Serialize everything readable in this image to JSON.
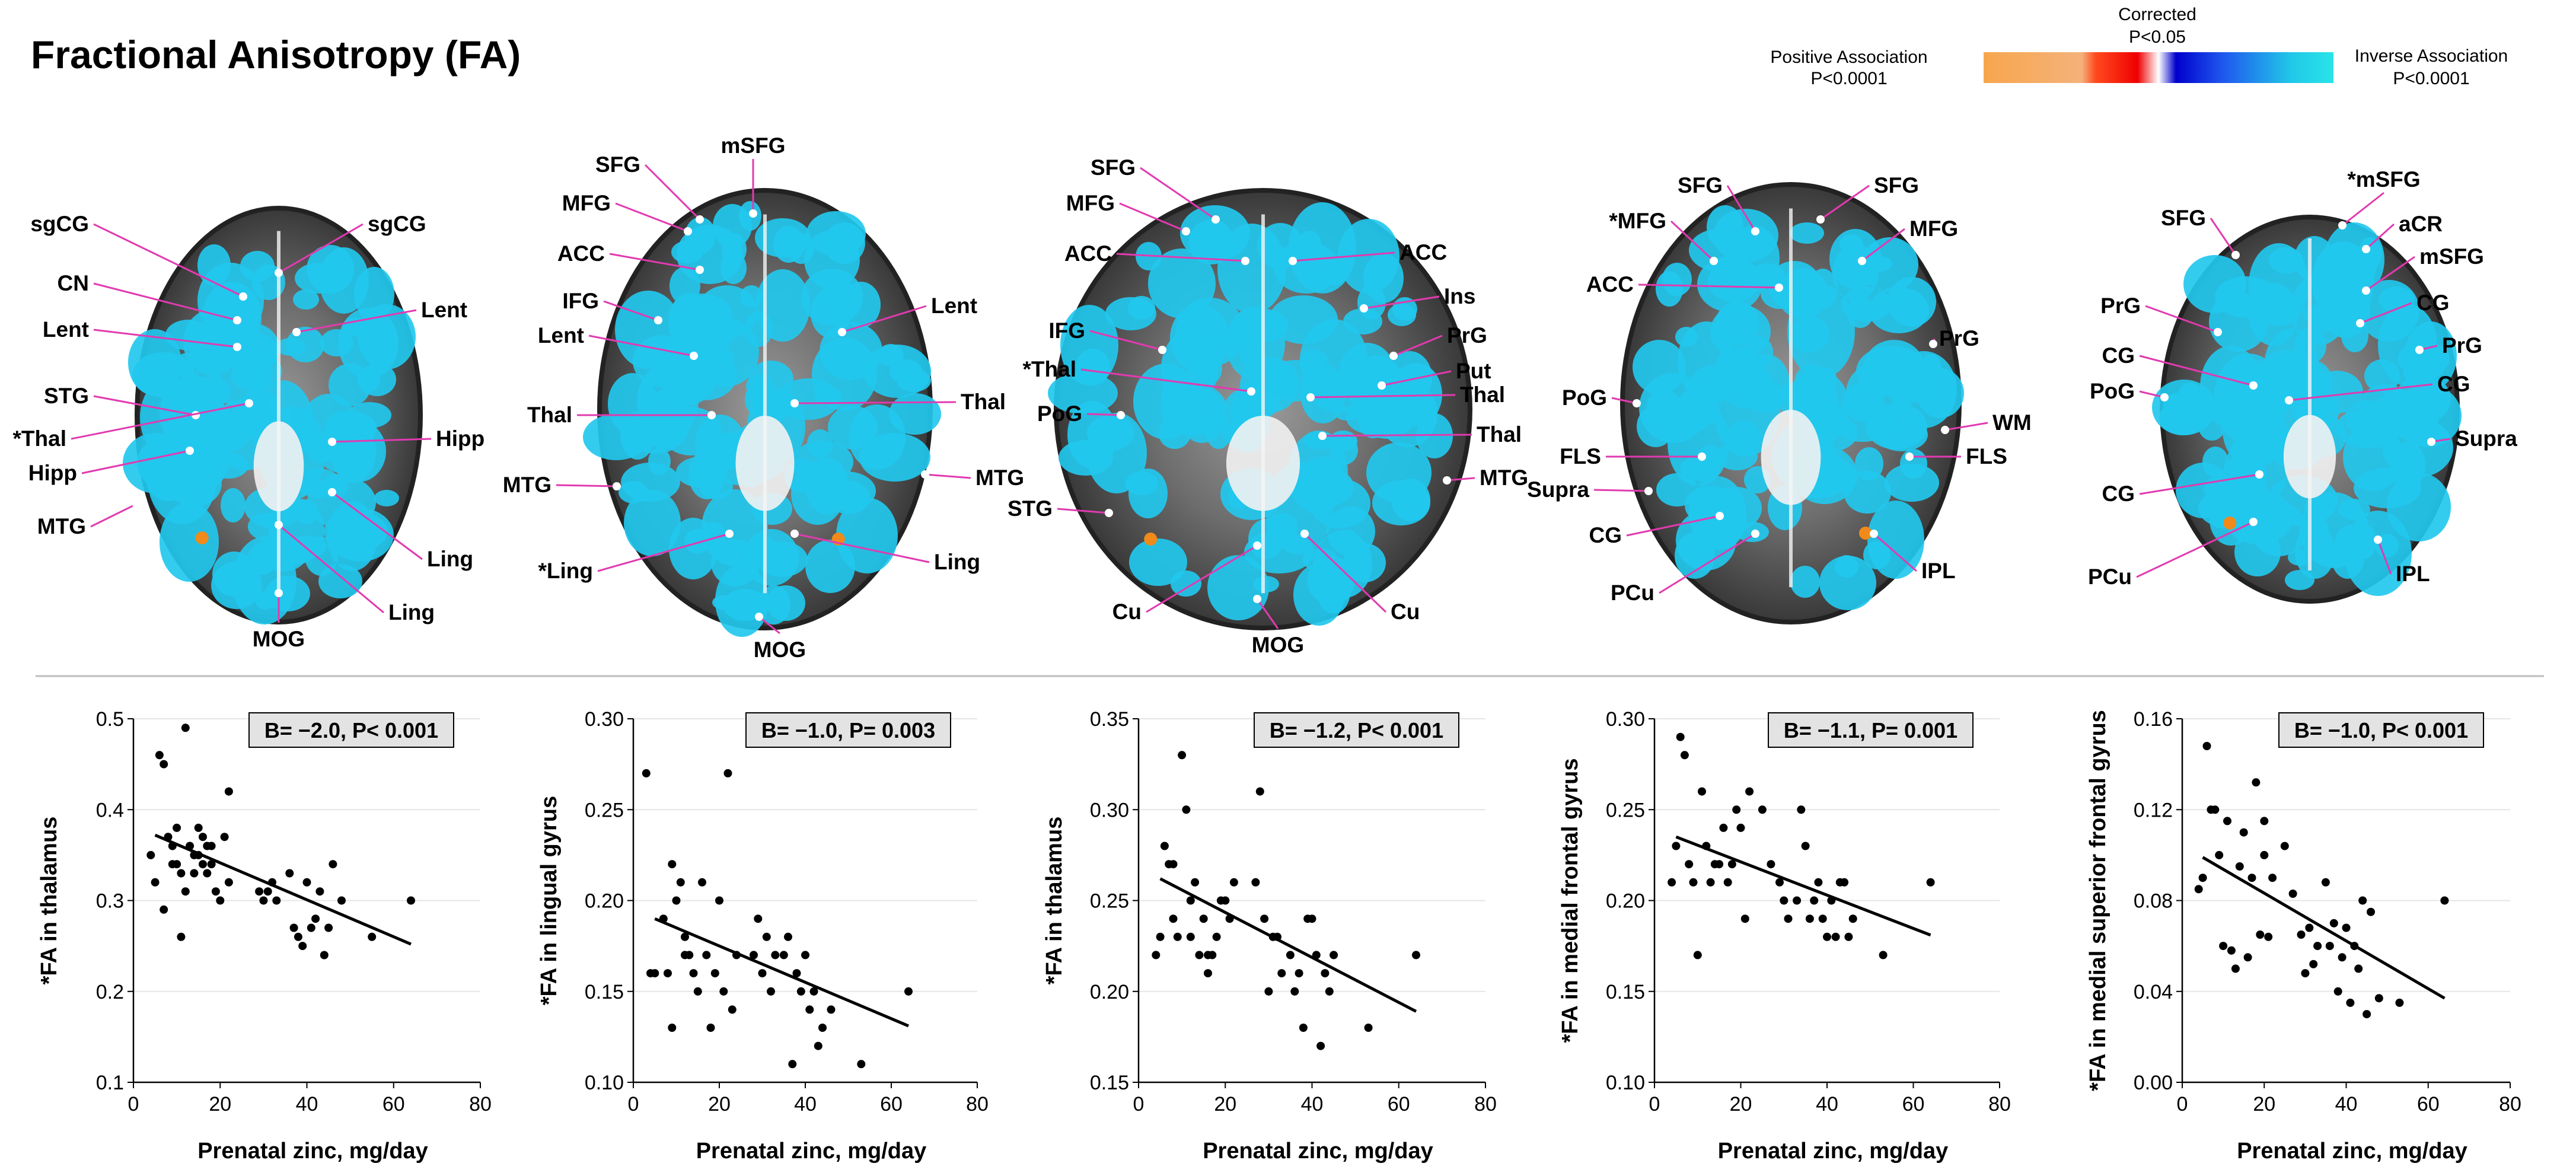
{
  "title": "Fractional Anisotropy (FA)",
  "colorbar": {
    "left_label": "Positive Association",
    "left_p": "P<0.0001",
    "mid_label": "Corrected",
    "mid_p": "P<0.05",
    "right_label": "Inverse Association",
    "right_p": "P<0.0001",
    "stops": [
      "#f7a64d",
      "#f4b27a",
      "#ff4a1f",
      "#ee0000",
      "#ffffff",
      "#0000cc",
      "#1f55ee",
      "#22c8e8",
      "#28e4e8"
    ]
  },
  "colors": {
    "overlay_cyan": "#22c8ee",
    "label_line": "#e23ab0",
    "hot_spot": "#f08a1a",
    "grid": "#e6e6e6"
  },
  "brains": [
    {
      "labels": [
        "sgCG",
        "sgCG",
        "CN",
        "Lent",
        "Lent",
        "STG",
        "*Thal",
        "Hipp",
        "Hipp",
        "MTG",
        "Ling",
        "Ling",
        "MOG"
      ]
    },
    {
      "labels": [
        "SFG",
        "mSFG",
        "MFG",
        "ACC",
        "IFG",
        "Lent",
        "Lent",
        "Thal",
        "Thal",
        "MTG",
        "MTG",
        "*Ling",
        "Ling",
        "MOG"
      ]
    },
    {
      "labels": [
        "SFG",
        "MFG",
        "ACC",
        "ACC",
        "IFG",
        "*Thal",
        "PoG",
        "Ins",
        "PrG",
        "Put",
        "Thal",
        "Thal",
        "MTG",
        "STG",
        "Cu",
        "Cu",
        "MOG"
      ]
    },
    {
      "labels": [
        "SFG",
        "SFG",
        "*MFG",
        "MFG",
        "ACC",
        "PrG",
        "PoG",
        "WM",
        "FLS",
        "FLS",
        "Supra",
        "CG",
        "PCu",
        "IPL"
      ]
    },
    {
      "labels": [
        "*mSFG",
        "SFG",
        "aCR",
        "mSFG",
        "PrG",
        "CG",
        "CG",
        "PrG",
        "PoG",
        "CG",
        "Supra",
        "CG",
        "PCu",
        "IPL"
      ]
    }
  ],
  "chart_data": [
    {
      "type": "scatter",
      "xlabel": "Prenatal zinc, mg/day",
      "ylabel": "*FA in thalamus",
      "stat": "B= −2.0, P< 0.001",
      "xlim": [
        0,
        80
      ],
      "ylim": [
        0.1,
        0.5
      ],
      "xticks": [
        0,
        20,
        40,
        60,
        80
      ],
      "yticks": [
        0.1,
        0.2,
        0.3,
        0.4,
        0.5
      ],
      "ydec": 1,
      "fit": [
        [
          5,
          0.372
        ],
        [
          64,
          0.252
        ]
      ],
      "x": [
        4,
        5,
        6,
        7,
        8,
        9,
        10,
        11,
        12,
        13,
        14,
        15,
        16,
        17,
        18,
        19,
        20,
        21,
        22,
        7,
        9,
        11,
        12,
        14,
        15,
        16,
        17,
        18,
        29,
        30,
        31,
        32,
        33,
        36,
        37,
        38,
        39,
        40,
        41,
        42,
        43,
        44,
        45,
        46,
        48,
        55,
        64,
        10,
        22
      ],
      "y": [
        0.35,
        0.32,
        0.46,
        0.45,
        0.37,
        0.36,
        0.34,
        0.33,
        0.49,
        0.36,
        0.35,
        0.38,
        0.34,
        0.33,
        0.36,
        0.31,
        0.3,
        0.37,
        0.42,
        0.29,
        0.34,
        0.26,
        0.31,
        0.33,
        0.35,
        0.37,
        0.36,
        0.34,
        0.31,
        0.3,
        0.31,
        0.32,
        0.3,
        0.33,
        0.27,
        0.26,
        0.25,
        0.32,
        0.27,
        0.28,
        0.31,
        0.24,
        0.27,
        0.34,
        0.3,
        0.26,
        0.3,
        0.38,
        0.32
      ]
    },
    {
      "type": "scatter",
      "xlabel": "Prenatal zinc, mg/day",
      "ylabel": "*FA in lingual gyrus",
      "stat": "B= −1.0, P= 0.003",
      "xlim": [
        0,
        80
      ],
      "ylim": [
        0.1,
        0.3
      ],
      "xticks": [
        0,
        20,
        40,
        60,
        80
      ],
      "yticks": [
        0.1,
        0.15,
        0.2,
        0.25,
        0.3
      ],
      "ydec": 2,
      "fit": [
        [
          5,
          0.19
        ],
        [
          64,
          0.131
        ]
      ],
      "x": [
        3,
        4,
        5,
        7,
        8,
        9,
        10,
        11,
        12,
        13,
        14,
        15,
        16,
        17,
        18,
        19,
        20,
        21,
        22,
        23,
        24,
        28,
        29,
        30,
        31,
        32,
        33,
        35,
        36,
        37,
        38,
        39,
        40,
        41,
        42,
        43,
        44,
        46,
        53,
        64,
        9,
        12
      ],
      "y": [
        0.27,
        0.16,
        0.16,
        0.19,
        0.16,
        0.22,
        0.2,
        0.21,
        0.18,
        0.17,
        0.16,
        0.15,
        0.21,
        0.17,
        0.13,
        0.16,
        0.2,
        0.15,
        0.27,
        0.14,
        0.17,
        0.17,
        0.19,
        0.16,
        0.18,
        0.15,
        0.17,
        0.17,
        0.18,
        0.11,
        0.16,
        0.15,
        0.17,
        0.14,
        0.15,
        0.12,
        0.13,
        0.14,
        0.11,
        0.15,
        0.13,
        0.17
      ]
    },
    {
      "type": "scatter",
      "xlabel": "Prenatal zinc, mg/day",
      "ylabel": "*FA in thalamus",
      "stat": "B= −1.2, P< 0.001",
      "xlim": [
        0,
        80
      ],
      "ylim": [
        0.15,
        0.35
      ],
      "xticks": [
        0,
        20,
        40,
        60,
        80
      ],
      "yticks": [
        0.15,
        0.2,
        0.25,
        0.3,
        0.35
      ],
      "ydec": 2,
      "fit": [
        [
          5,
          0.262
        ],
        [
          64,
          0.189
        ]
      ],
      "x": [
        4,
        5,
        6,
        7,
        8,
        9,
        10,
        11,
        12,
        13,
        14,
        15,
        16,
        17,
        18,
        19,
        20,
        21,
        22,
        27,
        28,
        29,
        30,
        31,
        32,
        33,
        35,
        36,
        37,
        38,
        39,
        40,
        41,
        42,
        43,
        44,
        45,
        53,
        64,
        8,
        12,
        16
      ],
      "y": [
        0.22,
        0.23,
        0.28,
        0.27,
        0.24,
        0.23,
        0.33,
        0.3,
        0.25,
        0.26,
        0.22,
        0.24,
        0.21,
        0.22,
        0.23,
        0.25,
        0.25,
        0.24,
        0.26,
        0.26,
        0.31,
        0.24,
        0.2,
        0.23,
        0.23,
        0.21,
        0.22,
        0.2,
        0.21,
        0.18,
        0.24,
        0.24,
        0.22,
        0.17,
        0.21,
        0.2,
        0.22,
        0.18,
        0.22,
        0.27,
        0.23,
        0.22
      ]
    },
    {
      "type": "scatter",
      "xlabel": "Prenatal zinc, mg/day",
      "ylabel": "*FA in medial frontal gyrus",
      "stat": "B= −1.1, P= 0.001",
      "xlim": [
        0,
        80
      ],
      "ylim": [
        0.1,
        0.3
      ],
      "xticks": [
        0,
        20,
        40,
        60,
        80
      ],
      "yticks": [
        0.1,
        0.15,
        0.2,
        0.25,
        0.3
      ],
      "ydec": 2,
      "fit": [
        [
          5,
          0.235
        ],
        [
          64,
          0.181
        ]
      ],
      "x": [
        4,
        5,
        6,
        7,
        8,
        9,
        10,
        11,
        12,
        13,
        14,
        15,
        16,
        17,
        18,
        19,
        20,
        21,
        22,
        25,
        27,
        29,
        30,
        31,
        33,
        34,
        35,
        36,
        37,
        38,
        39,
        40,
        41,
        42,
        43,
        44,
        45,
        46,
        53,
        64
      ],
      "y": [
        0.21,
        0.23,
        0.29,
        0.28,
        0.22,
        0.21,
        0.17,
        0.26,
        0.23,
        0.21,
        0.22,
        0.22,
        0.24,
        0.21,
        0.22,
        0.25,
        0.24,
        0.19,
        0.26,
        0.25,
        0.22,
        0.21,
        0.2,
        0.19,
        0.2,
        0.25,
        0.23,
        0.19,
        0.2,
        0.21,
        0.19,
        0.18,
        0.2,
        0.18,
        0.21,
        0.21,
        0.18,
        0.19,
        0.17,
        0.21
      ]
    },
    {
      "type": "scatter",
      "xlabel": "Prenatal zinc, mg/day",
      "ylabel": "*FA in medial superior frontal gyrus",
      "stat": "B= −1.0, P< 0.001",
      "xlim": [
        0,
        80
      ],
      "ylim": [
        0.0,
        0.16
      ],
      "xticks": [
        0,
        20,
        40,
        60,
        80
      ],
      "yticks": [
        0.0,
        0.04,
        0.08,
        0.12,
        0.16
      ],
      "ydec": 2,
      "fit": [
        [
          5,
          0.099
        ],
        [
          64,
          0.037
        ]
      ],
      "x": [
        4,
        5,
        6,
        7,
        8,
        9,
        10,
        11,
        12,
        13,
        14,
        15,
        16,
        17,
        18,
        19,
        20,
        21,
        22,
        25,
        27,
        29,
        30,
        31,
        32,
        33,
        35,
        36,
        37,
        38,
        39,
        40,
        41,
        42,
        43,
        44,
        45,
        46,
        48,
        53,
        64,
        20
      ],
      "y": [
        0.085,
        0.09,
        0.148,
        0.12,
        0.12,
        0.1,
        0.06,
        0.115,
        0.058,
        0.05,
        0.095,
        0.11,
        0.055,
        0.09,
        0.132,
        0.065,
        0.115,
        0.064,
        0.09,
        0.104,
        0.083,
        0.065,
        0.048,
        0.068,
        0.052,
        0.06,
        0.088,
        0.06,
        0.07,
        0.04,
        0.055,
        0.068,
        0.035,
        0.06,
        0.05,
        0.08,
        0.03,
        0.075,
        0.037,
        0.035,
        0.08,
        0.1
      ]
    }
  ]
}
